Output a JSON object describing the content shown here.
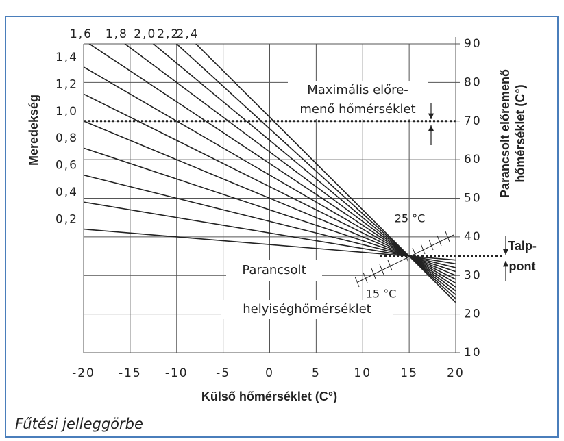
{
  "chart_data": {
    "type": "line",
    "caption": "Fűtési jelleggörbe",
    "x_label": "Külső hőmérséklet (C°)",
    "y_label": "Meredekség",
    "y2_label": [
      "Parancsolt előremenő",
      "hőmérséklet (C°)"
    ],
    "x": [
      -20,
      15,
      20
    ],
    "xlim": [
      -20,
      20
    ],
    "xticks": [
      -20,
      -15,
      -10,
      -5,
      0,
      5,
      10,
      15,
      20
    ],
    "ylim": [
      10,
      90
    ],
    "yticks": [
      10,
      20,
      30,
      40,
      50,
      60,
      70,
      80,
      90
    ],
    "grid": true,
    "line_color": "#222222",
    "series": [
      {
        "name": "0,2",
        "values": [
          42,
          35,
          34
        ]
      },
      {
        "name": "0,4",
        "values": [
          49,
          35,
          33
        ]
      },
      {
        "name": "0,6",
        "values": [
          56,
          35,
          32
        ]
      },
      {
        "name": "0,8",
        "values": [
          63,
          35,
          31
        ]
      },
      {
        "name": "1,0",
        "values": [
          70,
          35,
          30
        ]
      },
      {
        "name": "1,2",
        "values": [
          77,
          35,
          29
        ]
      },
      {
        "name": "1,4",
        "values": [
          84,
          35,
          28
        ]
      },
      {
        "name": "1,6",
        "values": [
          91,
          35,
          27
        ]
      },
      {
        "name": "1,8",
        "values": [
          98,
          35,
          26
        ]
      },
      {
        "name": "2,0",
        "values": [
          105,
          35,
          25
        ]
      },
      {
        "name": "2,2",
        "values": [
          112,
          35,
          24
        ]
      },
      {
        "name": "2,4",
        "values": [
          119,
          35,
          23
        ]
      }
    ],
    "reference_lines": [
      {
        "label": [
          "Maximális előre-",
          "menő hőmérséklet"
        ],
        "value": 70
      },
      {
        "label": [
          "Talp-",
          "pont"
        ],
        "value": 35
      }
    ],
    "room_temperature": {
      "label": [
        "Parancsolt",
        "helyiséghőmérséklet"
      ],
      "high": "25 °C",
      "low": "15 °C"
    }
  }
}
